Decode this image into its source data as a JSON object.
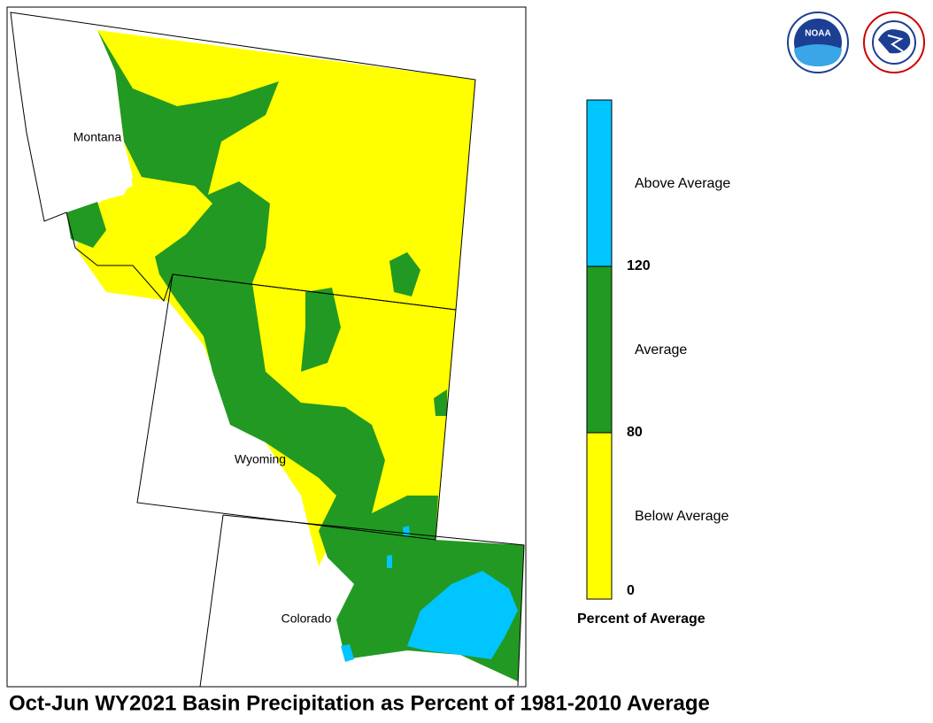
{
  "map": {
    "states": [
      "Montana",
      "Wyoming",
      "Colorado"
    ]
  },
  "legend": {
    "title": "Percent of Average",
    "classes": [
      {
        "label": "Below Average",
        "color": "#ffff00"
      },
      {
        "label": "Average",
        "color": "#229922"
      },
      {
        "label": "Above Average",
        "color": "#00c5ff"
      }
    ],
    "ticks": [
      0,
      80,
      120
    ]
  },
  "logos": {
    "noaa": "NOAA"
  },
  "title": "Oct-Jun WY2021 Basin Precipitation as Percent of 1981-2010 Average"
}
